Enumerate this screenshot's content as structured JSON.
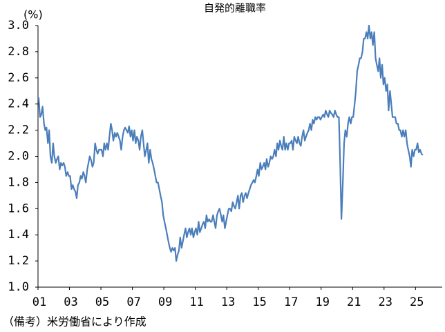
{
  "chart_data": {
    "type": "line",
    "title": "自発的離職率",
    "y_unit": "(%)",
    "note": "（備考）米労働省により作成",
    "color": "#4a7ebb",
    "xlim": [
      2001,
      2026.7
    ],
    "ylim": [
      1.0,
      3.0
    ],
    "xticks": [
      {
        "value": 2001,
        "label": "01"
      },
      {
        "value": 2003,
        "label": "03"
      },
      {
        "value": 2005,
        "label": "05"
      },
      {
        "value": 2007,
        "label": "07"
      },
      {
        "value": 2009,
        "label": "09"
      },
      {
        "value": 2011,
        "label": "11"
      },
      {
        "value": 2013,
        "label": "13"
      },
      {
        "value": 2015,
        "label": "15"
      },
      {
        "value": 2017,
        "label": "17"
      },
      {
        "value": 2019,
        "label": "19"
      },
      {
        "value": 2021,
        "label": "21"
      },
      {
        "value": 2023,
        "label": "23"
      },
      {
        "value": 2025,
        "label": "25"
      }
    ],
    "yticks": [
      {
        "value": 1,
        "label": "1.0"
      },
      1.2,
      1.4,
      1.6,
      1.8,
      {
        "value": 2,
        "label": "2.0"
      },
      2.2,
      2.4,
      2.6,
      2.8,
      {
        "value": 3,
        "label": "3.0"
      }
    ],
    "x": [
      2001.04,
      2001.13,
      2001.21,
      2001.29,
      2001.38,
      2001.46,
      2001.54,
      2001.63,
      2001.71,
      2001.79,
      2001.88,
      2001.96,
      2002.04,
      2002.13,
      2002.21,
      2002.29,
      2002.38,
      2002.46,
      2002.54,
      2002.63,
      2002.71,
      2002.79,
      2002.88,
      2002.96,
      2003.04,
      2003.13,
      2003.21,
      2003.29,
      2003.38,
      2003.46,
      2003.54,
      2003.63,
      2003.71,
      2003.79,
      2003.88,
      2003.96,
      2004.04,
      2004.13,
      2004.21,
      2004.29,
      2004.38,
      2004.46,
      2004.54,
      2004.63,
      2004.71,
      2004.79,
      2004.88,
      2004.96,
      2005.04,
      2005.13,
      2005.21,
      2005.29,
      2005.38,
      2005.46,
      2005.54,
      2005.63,
      2005.71,
      2005.79,
      2005.88,
      2005.96,
      2006.04,
      2006.13,
      2006.21,
      2006.29,
      2006.38,
      2006.46,
      2006.54,
      2006.63,
      2006.71,
      2006.79,
      2006.88,
      2006.96,
      2007.04,
      2007.13,
      2007.21,
      2007.29,
      2007.38,
      2007.46,
      2007.54,
      2007.63,
      2007.71,
      2007.79,
      2007.88,
      2007.96,
      2008.04,
      2008.13,
      2008.21,
      2008.29,
      2008.38,
      2008.46,
      2008.54,
      2008.63,
      2008.71,
      2008.79,
      2008.88,
      2008.96,
      2009.04,
      2009.13,
      2009.21,
      2009.29,
      2009.38,
      2009.46,
      2009.54,
      2009.63,
      2009.71,
      2009.79,
      2009.88,
      2009.96,
      2010.04,
      2010.13,
      2010.21,
      2010.29,
      2010.38,
      2010.46,
      2010.54,
      2010.63,
      2010.71,
      2010.79,
      2010.88,
      2010.96,
      2011.04,
      2011.13,
      2011.21,
      2011.29,
      2011.38,
      2011.46,
      2011.54,
      2011.63,
      2011.71,
      2011.79,
      2011.88,
      2011.96,
      2012.04,
      2012.13,
      2012.21,
      2012.29,
      2012.38,
      2012.46,
      2012.54,
      2012.63,
      2012.71,
      2012.79,
      2012.88,
      2012.96,
      2013.04,
      2013.13,
      2013.21,
      2013.29,
      2013.38,
      2013.46,
      2013.54,
      2013.63,
      2013.71,
      2013.79,
      2013.88,
      2013.96,
      2014.04,
      2014.13,
      2014.21,
      2014.29,
      2014.38,
      2014.46,
      2014.54,
      2014.63,
      2014.71,
      2014.79,
      2014.88,
      2014.96,
      2015.04,
      2015.13,
      2015.21,
      2015.29,
      2015.38,
      2015.46,
      2015.54,
      2015.63,
      2015.71,
      2015.79,
      2015.88,
      2015.96,
      2016.04,
      2016.13,
      2016.21,
      2016.29,
      2016.38,
      2016.46,
      2016.54,
      2016.63,
      2016.71,
      2016.79,
      2016.88,
      2016.96,
      2017.04,
      2017.13,
      2017.21,
      2017.29,
      2017.38,
      2017.46,
      2017.54,
      2017.63,
      2017.71,
      2017.79,
      2017.88,
      2017.96,
      2018.04,
      2018.13,
      2018.21,
      2018.29,
      2018.38,
      2018.46,
      2018.54,
      2018.63,
      2018.71,
      2018.79,
      2018.88,
      2018.96,
      2019.04,
      2019.13,
      2019.21,
      2019.29,
      2019.38,
      2019.46,
      2019.54,
      2019.63,
      2019.71,
      2019.79,
      2019.88,
      2019.96,
      2020.04,
      2020.13,
      2020.21,
      2020.29,
      2020.38,
      2020.46,
      2020.54,
      2020.63,
      2020.71,
      2020.79,
      2020.88,
      2020.96,
      2021.04,
      2021.13,
      2021.21,
      2021.29,
      2021.38,
      2021.46,
      2021.54,
      2021.63,
      2021.71,
      2021.79,
      2021.88,
      2021.96,
      2022.04,
      2022.13,
      2022.21,
      2022.29,
      2022.38,
      2022.46,
      2022.54,
      2022.63,
      2022.71,
      2022.79,
      2022.88,
      2022.96,
      2023.04,
      2023.13,
      2023.21,
      2023.29,
      2023.38,
      2023.46,
      2023.54,
      2023.63,
      2023.71,
      2023.79,
      2023.88,
      2023.96,
      2024.04,
      2024.13,
      2024.21,
      2024.29,
      2024.38,
      2024.46,
      2024.54,
      2024.63,
      2024.71,
      2024.79,
      2024.88,
      2024.96,
      2025.04,
      2025.13,
      2025.21,
      2025.29,
      2025.38,
      2025.46
    ],
    "values": [
      2.45,
      2.3,
      2.32,
      2.38,
      2.25,
      2.2,
      2.22,
      2.1,
      2.2,
      2.0,
      1.95,
      2.1,
      2.0,
      1.95,
      1.98,
      2.0,
      1.9,
      1.95,
      1.93,
      1.95,
      1.92,
      1.85,
      1.88,
      1.85,
      1.85,
      1.75,
      1.78,
      1.75,
      1.73,
      1.68,
      1.78,
      1.8,
      1.85,
      1.83,
      1.88,
      1.85,
      1.8,
      1.9,
      1.95,
      2.0,
      1.97,
      1.92,
      1.95,
      2.1,
      2.05,
      2.02,
      2.05,
      2.05,
      2.05,
      2.0,
      2.1,
      2.05,
      2.1,
      2.05,
      2.15,
      2.25,
      2.2,
      2.12,
      2.18,
      2.15,
      2.18,
      2.15,
      2.12,
      2.05,
      2.15,
      2.2,
      2.22,
      2.2,
      2.18,
      2.23,
      2.15,
      2.2,
      2.12,
      2.2,
      2.1,
      2.15,
      2.12,
      2.05,
      2.15,
      2.2,
      2.1,
      2.0,
      2.05,
      2.1,
      1.95,
      2.05,
      1.98,
      1.95,
      1.9,
      1.85,
      1.8,
      1.8,
      1.75,
      1.7,
      1.65,
      1.55,
      1.5,
      1.45,
      1.4,
      1.35,
      1.3,
      1.27,
      1.3,
      1.28,
      1.3,
      1.2,
      1.25,
      1.28,
      1.38,
      1.3,
      1.35,
      1.4,
      1.45,
      1.38,
      1.42,
      1.45,
      1.4,
      1.45,
      1.38,
      1.42,
      1.45,
      1.4,
      1.5,
      1.42,
      1.45,
      1.48,
      1.5,
      1.45,
      1.55,
      1.5,
      1.52,
      1.5,
      1.5,
      1.55,
      1.5,
      1.45,
      1.55,
      1.58,
      1.6,
      1.55,
      1.5,
      1.55,
      1.45,
      1.5,
      1.55,
      1.6,
      1.6,
      1.58,
      1.65,
      1.62,
      1.6,
      1.65,
      1.7,
      1.6,
      1.7,
      1.72,
      1.65,
      1.7,
      1.72,
      1.68,
      1.72,
      1.75,
      1.78,
      1.8,
      1.82,
      1.8,
      1.85,
      1.9,
      1.85,
      1.95,
      1.9,
      1.92,
      1.95,
      1.9,
      1.98,
      1.92,
      1.95,
      2.0,
      1.98,
      2.0,
      2.05,
      2.0,
      2.1,
      2.05,
      2.12,
      2.08,
      2.05,
      2.15,
      2.05,
      2.1,
      2.05,
      2.1,
      2.1,
      2.12,
      2.05,
      2.15,
      2.12,
      2.1,
      2.15,
      2.1,
      2.08,
      2.15,
      2.2,
      2.12,
      2.15,
      2.18,
      2.2,
      2.25,
      2.2,
      2.28,
      2.25,
      2.3,
      2.28,
      2.3,
      2.3,
      2.28,
      2.3,
      2.32,
      2.3,
      2.35,
      2.32,
      2.3,
      2.35,
      2.33,
      2.32,
      2.3,
      2.35,
      2.32,
      2.3,
      2.3,
      1.95,
      1.52,
      1.8,
      2.1,
      2.2,
      2.15,
      2.25,
      2.3,
      2.25,
      2.3,
      2.3,
      2.4,
      2.5,
      2.65,
      2.7,
      2.75,
      2.75,
      2.8,
      2.9,
      2.9,
      2.95,
      2.9,
      3.0,
      2.9,
      2.95,
      2.85,
      2.95,
      2.75,
      2.7,
      2.65,
      2.75,
      2.6,
      2.7,
      2.55,
      2.6,
      2.5,
      2.55,
      2.35,
      2.5,
      2.4,
      2.3,
      2.3,
      2.3,
      2.25,
      2.25,
      2.2,
      2.2,
      2.15,
      2.2,
      2.15,
      2.2,
      2.1,
      2.05,
      2.0,
      1.92,
      2.05,
      2.0,
      2.05,
      2.05,
      2.1,
      2.03,
      2.05,
      2.02,
      2.01
    ]
  }
}
